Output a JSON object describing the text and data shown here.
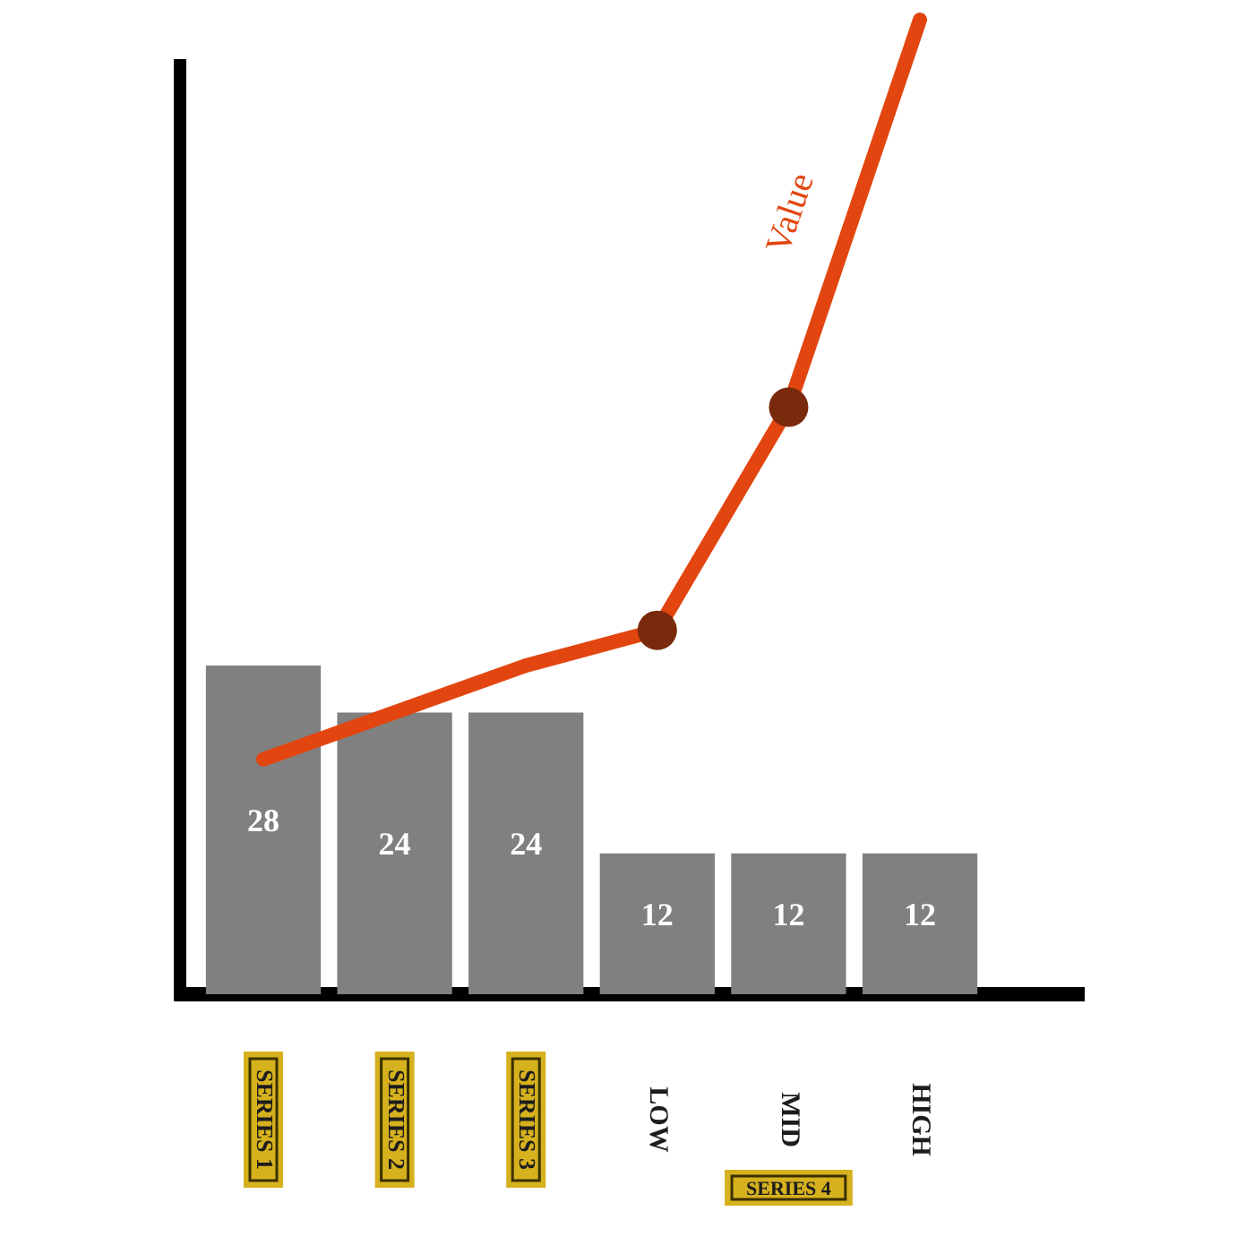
{
  "chart_data": {
    "type": "bar",
    "categories": [
      "SERIES 1",
      "SERIES 2",
      "SERIES 3",
      "LOW",
      "MID",
      "HIGH"
    ],
    "series": [
      {
        "color": "#808080",
        "values": [
          28,
          24,
          24,
          12,
          12,
          12
        ],
        "value_labels": [
          "28",
          "24",
          "24",
          "12",
          "12",
          "12"
        ]
      },
      {
        "name": "Value",
        "type": "line",
        "color": "#e2450f",
        "marker": "none",
        "values": [
          20,
          24,
          28,
          31,
          50,
          83
        ]
      },
      {
        "type": "scatter",
        "color": "#7a2a0c",
        "marker": "circle",
        "x": [
          "LOW",
          "MID"
        ],
        "values": [
          31,
          50
        ]
      }
    ],
    "tick_labels": "x",
    "annotations": [
      "SERIES 4"
    ]
  }
}
